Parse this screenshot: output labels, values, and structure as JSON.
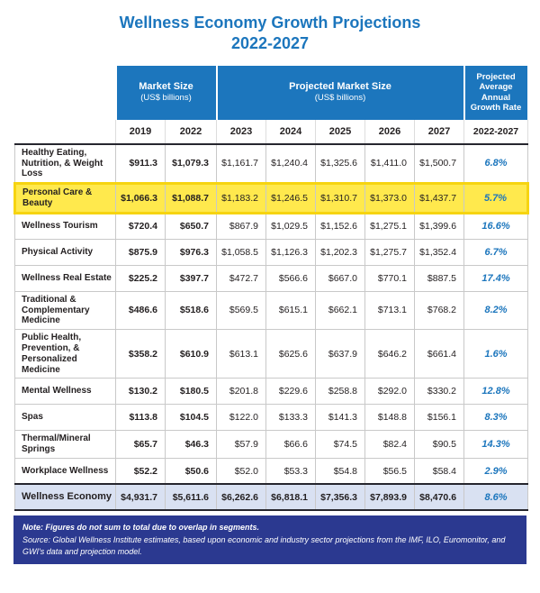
{
  "header": {
    "title_line1": "Wellness Economy Growth Projections",
    "title_line2": "2022-2027"
  },
  "table": {
    "group_market_size": "Market Size",
    "group_projected": "Projected Market Size",
    "unit_label": "(US$ billions)",
    "group_growth": "Projected Average Annual Growth Rate",
    "growth_period": "2022-2027"
  },
  "chart_data": {
    "type": "table",
    "title": "Wellness Economy Growth Projections 2022-2027",
    "unit": "US$ billions",
    "years": [
      "2019",
      "2022",
      "2023",
      "2024",
      "2025",
      "2026",
      "2027"
    ],
    "actual_years": [
      "2019",
      "2022"
    ],
    "projected_years": [
      "2023",
      "2024",
      "2025",
      "2026",
      "2027"
    ],
    "growth_column_label": "Projected Average Annual Growth Rate 2022-2027",
    "rows": [
      {
        "label": "Healthy Eating, Nutrition, & Weight Loss",
        "values": [
          911.3,
          1079.3,
          1161.7,
          1240.4,
          1325.6,
          1411.0,
          1500.7
        ],
        "growth_pct": 6.8,
        "highlighted": false
      },
      {
        "label": "Personal Care & Beauty",
        "values": [
          1066.3,
          1088.7,
          1183.2,
          1246.5,
          1310.7,
          1373.0,
          1437.7
        ],
        "growth_pct": 5.7,
        "highlighted": true
      },
      {
        "label": "Wellness Tourism",
        "values": [
          720.4,
          650.7,
          867.9,
          1029.5,
          1152.6,
          1275.1,
          1399.6
        ],
        "growth_pct": 16.6,
        "highlighted": false
      },
      {
        "label": "Physical Activity",
        "values": [
          875.9,
          976.3,
          1058.5,
          1126.3,
          1202.3,
          1275.7,
          1352.4
        ],
        "growth_pct": 6.7,
        "highlighted": false
      },
      {
        "label": "Wellness Real Estate",
        "values": [
          225.2,
          397.7,
          472.7,
          566.6,
          667.0,
          770.1,
          887.5
        ],
        "growth_pct": 17.4,
        "highlighted": false
      },
      {
        "label": "Traditional & Complementary Medicine",
        "values": [
          486.6,
          518.6,
          569.5,
          615.1,
          662.1,
          713.1,
          768.2
        ],
        "growth_pct": 8.2,
        "highlighted": false
      },
      {
        "label": "Public Health, Prevention, & Personalized Medicine",
        "values": [
          358.2,
          610.9,
          613.1,
          625.6,
          637.9,
          646.2,
          661.4
        ],
        "growth_pct": 1.6,
        "highlighted": false
      },
      {
        "label": "Mental Wellness",
        "values": [
          130.2,
          180.5,
          201.8,
          229.6,
          258.8,
          292.0,
          330.2
        ],
        "growth_pct": 12.8,
        "highlighted": false
      },
      {
        "label": "Spas",
        "values": [
          113.8,
          104.5,
          122.0,
          133.3,
          141.3,
          148.8,
          156.1
        ],
        "growth_pct": 8.3,
        "highlighted": false
      },
      {
        "label": "Thermal/Mineral Springs",
        "values": [
          65.7,
          46.3,
          57.9,
          66.6,
          74.5,
          82.4,
          90.5
        ],
        "growth_pct": 14.3,
        "highlighted": false
      },
      {
        "label": "Workplace Wellness",
        "values": [
          52.2,
          50.6,
          52.0,
          53.3,
          54.8,
          56.5,
          58.4
        ],
        "growth_pct": 2.9,
        "highlighted": false
      }
    ],
    "total": {
      "label": "Wellness Economy",
      "values": [
        4931.7,
        5611.6,
        6262.6,
        6818.1,
        7356.3,
        7893.9,
        8470.6
      ],
      "growth_pct": 8.6
    }
  },
  "footer": {
    "note": "Note: Figures do not sum to total due to overlap in segments.",
    "source": "Source: Global Wellness Institute estimates, based upon economic and industry sector projections from the IMF, ILO, Euromonitor, and GWI's data and projection model."
  },
  "colors": {
    "header_blue": "#1C76BD",
    "growth_value_blue": "#1C76BD",
    "highlight_yellow": "#FFE94D",
    "highlight_border": "#F6D411",
    "total_row_bg": "#D9E1F2",
    "footer_navy": "#2B3990"
  }
}
